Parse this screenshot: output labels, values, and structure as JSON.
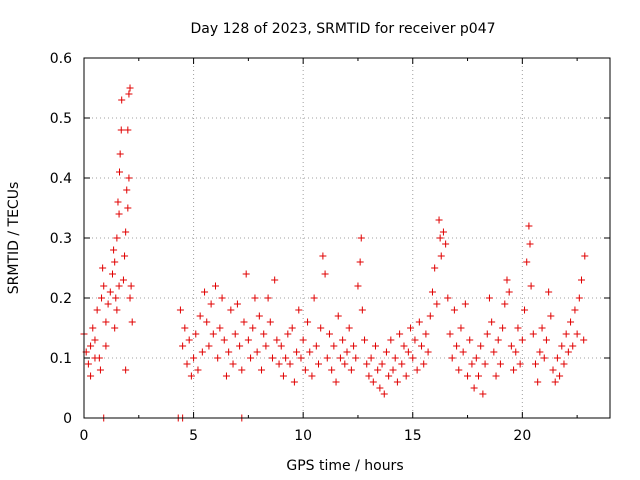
{
  "chart_data": {
    "type": "scatter",
    "title": "Day 128 of 2023, SRMTID for receiver p047",
    "xlabel": "GPS time / hours",
    "ylabel": "SRMTID / TECUs",
    "xlim": [
      0,
      24
    ],
    "ylim": [
      0,
      0.6
    ],
    "x_ticks": [
      0,
      5,
      10,
      15,
      20
    ],
    "x_tick_labels": [
      "0",
      "5",
      "10",
      "15",
      "20"
    ],
    "y_ticks": [
      0,
      0.1,
      0.2,
      0.3,
      0.4,
      0.5,
      0.6
    ],
    "y_tick_labels": [
      "0",
      "0.1",
      "0.2",
      "0.3",
      "0.4",
      "0.5",
      "0.6"
    ],
    "grid": true,
    "marker": "+",
    "color": "#e00000",
    "series": [
      {
        "name": "SRMTID",
        "points": [
          [
            0.0,
            0.14
          ],
          [
            0.1,
            0.11
          ],
          [
            0.2,
            0.09
          ],
          [
            0.3,
            0.12
          ],
          [
            0.4,
            0.15
          ],
          [
            0.5,
            0.13
          ],
          [
            0.6,
            0.18
          ],
          [
            0.7,
            0.1
          ],
          [
            0.75,
            0.08
          ],
          [
            0.8,
            0.2
          ],
          [
            0.85,
            0.25
          ],
          [
            0.9,
            0.22
          ],
          [
            1.0,
            0.16
          ],
          [
            1.1,
            0.19
          ],
          [
            1.2,
            0.21
          ],
          [
            1.3,
            0.24
          ],
          [
            1.35,
            0.28
          ],
          [
            1.4,
            0.26
          ],
          [
            1.45,
            0.2
          ],
          [
            1.5,
            0.3
          ],
          [
            1.55,
            0.36
          ],
          [
            1.6,
            0.34
          ],
          [
            1.62,
            0.41
          ],
          [
            1.65,
            0.44
          ],
          [
            1.7,
            0.48
          ],
          [
            1.72,
            0.53
          ],
          [
            1.8,
            0.23
          ],
          [
            1.85,
            0.27
          ],
          [
            1.9,
            0.31
          ],
          [
            1.95,
            0.38
          ],
          [
            2.0,
            0.35
          ],
          [
            2.0,
            0.48
          ],
          [
            2.05,
            0.4
          ],
          [
            2.05,
            0.54
          ],
          [
            2.1,
            0.55
          ],
          [
            2.15,
            0.22
          ],
          [
            2.2,
            0.16
          ],
          [
            1.9,
            0.08
          ],
          [
            1.0,
            0.12
          ],
          [
            0.5,
            0.1
          ],
          [
            0.3,
            0.07
          ],
          [
            1.5,
            0.18
          ],
          [
            1.4,
            0.15
          ],
          [
            1.6,
            0.22
          ],
          [
            2.1,
            0.2
          ],
          [
            4.4,
            0.18
          ],
          [
            4.5,
            0.12
          ],
          [
            4.6,
            0.15
          ],
          [
            4.7,
            0.09
          ],
          [
            4.8,
            0.13
          ],
          [
            4.9,
            0.07
          ],
          [
            5.0,
            0.1
          ],
          [
            5.1,
            0.14
          ],
          [
            5.2,
            0.08
          ],
          [
            5.3,
            0.17
          ],
          [
            5.4,
            0.11
          ],
          [
            5.5,
            0.21
          ],
          [
            5.6,
            0.16
          ],
          [
            5.7,
            0.12
          ],
          [
            5.8,
            0.19
          ],
          [
            5.9,
            0.14
          ],
          [
            6.0,
            0.22
          ],
          [
            6.1,
            0.1
          ],
          [
            6.2,
            0.15
          ],
          [
            6.3,
            0.2
          ],
          [
            6.4,
            0.13
          ],
          [
            6.5,
            0.07
          ],
          [
            6.6,
            0.11
          ],
          [
            6.7,
            0.18
          ],
          [
            6.8,
            0.09
          ],
          [
            6.9,
            0.14
          ],
          [
            7.0,
            0.19
          ],
          [
            7.1,
            0.12
          ],
          [
            7.2,
            0.08
          ],
          [
            7.3,
            0.16
          ],
          [
            7.4,
            0.24
          ],
          [
            7.5,
            0.13
          ],
          [
            7.6,
            0.1
          ],
          [
            7.7,
            0.15
          ],
          [
            7.8,
            0.2
          ],
          [
            7.9,
            0.11
          ],
          [
            8.0,
            0.17
          ],
          [
            8.1,
            0.08
          ],
          [
            8.2,
            0.14
          ],
          [
            8.3,
            0.12
          ],
          [
            8.4,
            0.2
          ],
          [
            8.5,
            0.16
          ],
          [
            8.6,
            0.1
          ],
          [
            8.7,
            0.23
          ],
          [
            8.8,
            0.13
          ],
          [
            8.9,
            0.09
          ],
          [
            9.0,
            0.12
          ],
          [
            9.1,
            0.07
          ],
          [
            9.2,
            0.1
          ],
          [
            9.3,
            0.14
          ],
          [
            9.4,
            0.09
          ],
          [
            9.5,
            0.15
          ],
          [
            9.6,
            0.06
          ],
          [
            9.7,
            0.11
          ],
          [
            9.8,
            0.18
          ],
          [
            9.9,
            0.1
          ],
          [
            10.0,
            0.13
          ],
          [
            10.1,
            0.08
          ],
          [
            10.2,
            0.16
          ],
          [
            10.3,
            0.11
          ],
          [
            10.4,
            0.07
          ],
          [
            10.5,
            0.2
          ],
          [
            10.6,
            0.12
          ],
          [
            10.7,
            0.09
          ],
          [
            10.8,
            0.15
          ],
          [
            10.9,
            0.27
          ],
          [
            11.0,
            0.24
          ],
          [
            11.1,
            0.1
          ],
          [
            11.2,
            0.14
          ],
          [
            11.3,
            0.08
          ],
          [
            11.4,
            0.12
          ],
          [
            11.5,
            0.06
          ],
          [
            11.6,
            0.17
          ],
          [
            11.7,
            0.1
          ],
          [
            11.8,
            0.13
          ],
          [
            11.9,
            0.09
          ],
          [
            12.0,
            0.11
          ],
          [
            12.1,
            0.15
          ],
          [
            12.2,
            0.08
          ],
          [
            12.3,
            0.12
          ],
          [
            12.4,
            0.1
          ],
          [
            12.5,
            0.22
          ],
          [
            12.6,
            0.26
          ],
          [
            12.65,
            0.3
          ],
          [
            12.7,
            0.18
          ],
          [
            12.8,
            0.13
          ],
          [
            12.9,
            0.09
          ],
          [
            13.0,
            0.07
          ],
          [
            13.1,
            0.1
          ],
          [
            13.2,
            0.06
          ],
          [
            13.3,
            0.12
          ],
          [
            13.4,
            0.08
          ],
          [
            13.5,
            0.05
          ],
          [
            13.6,
            0.09
          ],
          [
            13.7,
            0.04
          ],
          [
            13.8,
            0.11
          ],
          [
            13.9,
            0.07
          ],
          [
            14.0,
            0.13
          ],
          [
            14.1,
            0.08
          ],
          [
            14.2,
            0.1
          ],
          [
            14.3,
            0.06
          ],
          [
            14.4,
            0.14
          ],
          [
            14.5,
            0.09
          ],
          [
            14.6,
            0.12
          ],
          [
            14.7,
            0.07
          ],
          [
            14.8,
            0.11
          ],
          [
            14.9,
            0.15
          ],
          [
            15.0,
            0.1
          ],
          [
            15.1,
            0.13
          ],
          [
            15.2,
            0.08
          ],
          [
            15.3,
            0.16
          ],
          [
            15.4,
            0.12
          ],
          [
            15.5,
            0.09
          ],
          [
            15.6,
            0.14
          ],
          [
            15.7,
            0.11
          ],
          [
            15.8,
            0.17
          ],
          [
            15.9,
            0.21
          ],
          [
            16.0,
            0.25
          ],
          [
            16.1,
            0.19
          ],
          [
            16.2,
            0.33
          ],
          [
            16.25,
            0.3
          ],
          [
            16.3,
            0.27
          ],
          [
            16.4,
            0.31
          ],
          [
            16.5,
            0.29
          ],
          [
            16.6,
            0.2
          ],
          [
            16.7,
            0.14
          ],
          [
            16.8,
            0.1
          ],
          [
            16.9,
            0.18
          ],
          [
            17.0,
            0.12
          ],
          [
            17.1,
            0.08
          ],
          [
            17.2,
            0.15
          ],
          [
            17.3,
            0.11
          ],
          [
            17.4,
            0.19
          ],
          [
            17.5,
            0.07
          ],
          [
            17.6,
            0.13
          ],
          [
            17.7,
            0.09
          ],
          [
            17.8,
            0.05
          ],
          [
            17.9,
            0.1
          ],
          [
            18.0,
            0.07
          ],
          [
            18.1,
            0.12
          ],
          [
            18.2,
            0.04
          ],
          [
            18.3,
            0.09
          ],
          [
            18.4,
            0.14
          ],
          [
            18.5,
            0.2
          ],
          [
            18.6,
            0.16
          ],
          [
            18.7,
            0.11
          ],
          [
            18.8,
            0.07
          ],
          [
            18.9,
            0.13
          ],
          [
            19.0,
            0.09
          ],
          [
            19.1,
            0.15
          ],
          [
            19.2,
            0.19
          ],
          [
            19.3,
            0.23
          ],
          [
            19.4,
            0.21
          ],
          [
            19.5,
            0.12
          ],
          [
            19.6,
            0.08
          ],
          [
            19.7,
            0.11
          ],
          [
            19.8,
            0.15
          ],
          [
            19.9,
            0.09
          ],
          [
            20.0,
            0.13
          ],
          [
            20.1,
            0.18
          ],
          [
            20.2,
            0.26
          ],
          [
            20.3,
            0.32
          ],
          [
            20.35,
            0.29
          ],
          [
            20.4,
            0.22
          ],
          [
            20.5,
            0.14
          ],
          [
            20.6,
            0.09
          ],
          [
            20.7,
            0.06
          ],
          [
            20.8,
            0.11
          ],
          [
            20.9,
            0.15
          ],
          [
            21.0,
            0.1
          ],
          [
            21.1,
            0.13
          ],
          [
            21.2,
            0.21
          ],
          [
            21.3,
            0.17
          ],
          [
            21.4,
            0.08
          ],
          [
            21.5,
            0.06
          ],
          [
            21.6,
            0.1
          ],
          [
            21.7,
            0.07
          ],
          [
            21.8,
            0.12
          ],
          [
            21.9,
            0.09
          ],
          [
            22.0,
            0.14
          ],
          [
            22.1,
            0.11
          ],
          [
            22.2,
            0.16
          ],
          [
            22.3,
            0.12
          ],
          [
            22.4,
            0.18
          ],
          [
            22.5,
            0.14
          ],
          [
            22.6,
            0.2
          ],
          [
            22.7,
            0.23
          ],
          [
            22.8,
            0.13
          ],
          [
            22.85,
            0.27
          ],
          [
            0.9,
            0.0
          ],
          [
            4.3,
            0.0
          ],
          [
            4.5,
            0.0
          ],
          [
            7.2,
            0.0
          ]
        ]
      }
    ]
  }
}
